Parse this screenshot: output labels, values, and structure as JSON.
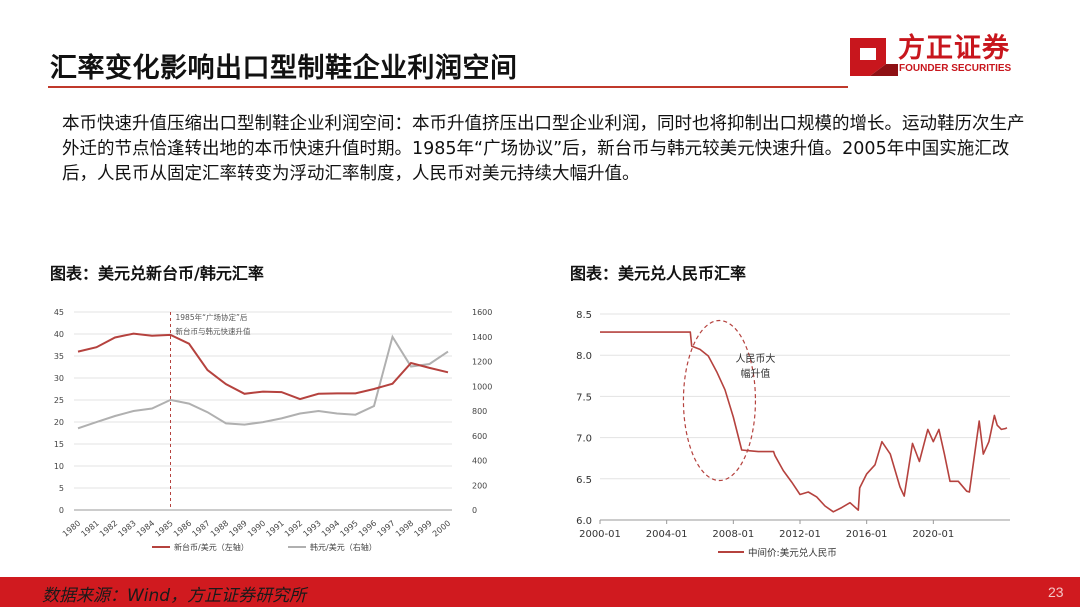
{
  "header": {
    "title": "汇率变化影响出口型制鞋企业利润空间",
    "logo_name": "方正证券",
    "logo_sub": "FOUNDER SECURITIES"
  },
  "intro": "本币快速升值压缩出口型制鞋企业利润空间：本币升值挤压出口型企业利润，同时也将抑制出口规模的增长。运动鞋历次生产外迁的节点恰逢转出地的本币快速升值时期。1985年“广场协议”后，新台币与韩元较美元快速升值。2005年中国实施汇改后，人民币从固定汇率转变为浮动汇率制度，人民币对美元持续大幅升值。",
  "figures": {
    "fig1_title": "图表：美元兑新台币/韩元汇率",
    "fig2_title": "图表：美元兑人民币汇率"
  },
  "footer": {
    "source": "数据来源：Wind，方正证券研究所",
    "page": "23"
  },
  "colors": {
    "brand_red": "#c8161d",
    "series_red": "#b5423e",
    "series_gray": "#b0b0b0"
  },
  "chart_data": [
    {
      "type": "line",
      "categories": [
        "1980",
        "1981",
        "1982",
        "1983",
        "1984",
        "1985",
        "1986",
        "1987",
        "1988",
        "1989",
        "1990",
        "1991",
        "1992",
        "1993",
        "1994",
        "1995",
        "1996",
        "1997",
        "1998",
        "1999",
        "2000"
      ],
      "series": [
        {
          "name": "新台币/美元（左轴）",
          "axis": "left",
          "values": [
            36.0,
            37.0,
            39.2,
            40.1,
            39.6,
            39.8,
            37.8,
            31.8,
            28.6,
            26.4,
            26.9,
            26.8,
            25.2,
            26.4,
            26.5,
            26.5,
            27.5,
            28.7,
            33.4,
            32.3,
            31.3
          ]
        },
        {
          "name": "韩元/美元（右轴）",
          "axis": "right",
          "values": [
            660,
            710,
            760,
            800,
            820,
            890,
            860,
            790,
            700,
            690,
            710,
            740,
            780,
            800,
            780,
            770,
            840,
            1400,
            1160,
            1180,
            1280
          ]
        }
      ],
      "ylim_left": [
        0,
        45
      ],
      "yticks_left": [
        0,
        5,
        10,
        15,
        20,
        25,
        30,
        35,
        40,
        45
      ],
      "ylim_right": [
        0,
        1600
      ],
      "yticks_right": [
        0,
        200,
        400,
        600,
        800,
        1000,
        1200,
        1400,
        1600
      ],
      "annotation": [
        "1985年“广场协定”后",
        "新台币与韩元快速升值"
      ],
      "annotation_marker_x": "1985",
      "legend": "bottom",
      "grid": true
    },
    {
      "type": "line",
      "x": [
        "2000-01",
        "2001-01",
        "2002-01",
        "2003-01",
        "2004-01",
        "2005-06",
        "2005-07",
        "2006-01",
        "2006-07",
        "2007-01",
        "2007-07",
        "2008-01",
        "2008-07",
        "2009-01",
        "2009-07",
        "2010-01",
        "2010-06",
        "2010-07",
        "2011-01",
        "2011-07",
        "2012-01",
        "2012-07",
        "2013-01",
        "2013-07",
        "2014-01",
        "2014-07",
        "2015-01",
        "2015-07",
        "2015-08",
        "2016-01",
        "2016-07",
        "2016-12",
        "2017-06",
        "2018-01",
        "2018-04",
        "2018-10",
        "2019-03",
        "2019-09",
        "2020-01",
        "2020-05",
        "2020-09",
        "2021-01",
        "2021-07",
        "2022-01",
        "2022-03",
        "2022-10",
        "2023-01",
        "2023-05",
        "2023-09",
        "2023-11",
        "2024-02",
        "2024-05",
        "2024-06"
      ],
      "values": [
        8.28,
        8.28,
        8.28,
        8.28,
        8.28,
        8.28,
        8.11,
        8.07,
        7.99,
        7.8,
        7.58,
        7.25,
        6.85,
        6.84,
        6.83,
        6.83,
        6.83,
        6.78,
        6.6,
        6.46,
        6.31,
        6.34,
        6.28,
        6.17,
        6.1,
        6.15,
        6.21,
        6.12,
        6.39,
        6.56,
        6.67,
        6.95,
        6.8,
        6.4,
        6.29,
        6.93,
        6.71,
        7.1,
        6.95,
        7.1,
        6.8,
        6.47,
        6.47,
        6.35,
        6.34,
        7.2,
        6.8,
        6.95,
        7.27,
        7.15,
        7.1,
        7.11,
        7.12
      ],
      "ylim": [
        6.0,
        8.5
      ],
      "yticks": [
        "6.0",
        "6.5",
        "7.0",
        "7.5",
        "8.0",
        "8.5"
      ],
      "xtick_labels": [
        "2000-01",
        "2004-01",
        "2008-01",
        "2012-01",
        "2016-01",
        "2020-01"
      ],
      "annotation": [
        "人民币大",
        "幅升值"
      ],
      "legend_label": "中间价:美元兑人民币",
      "legend": "bottom",
      "grid": true
    }
  ]
}
